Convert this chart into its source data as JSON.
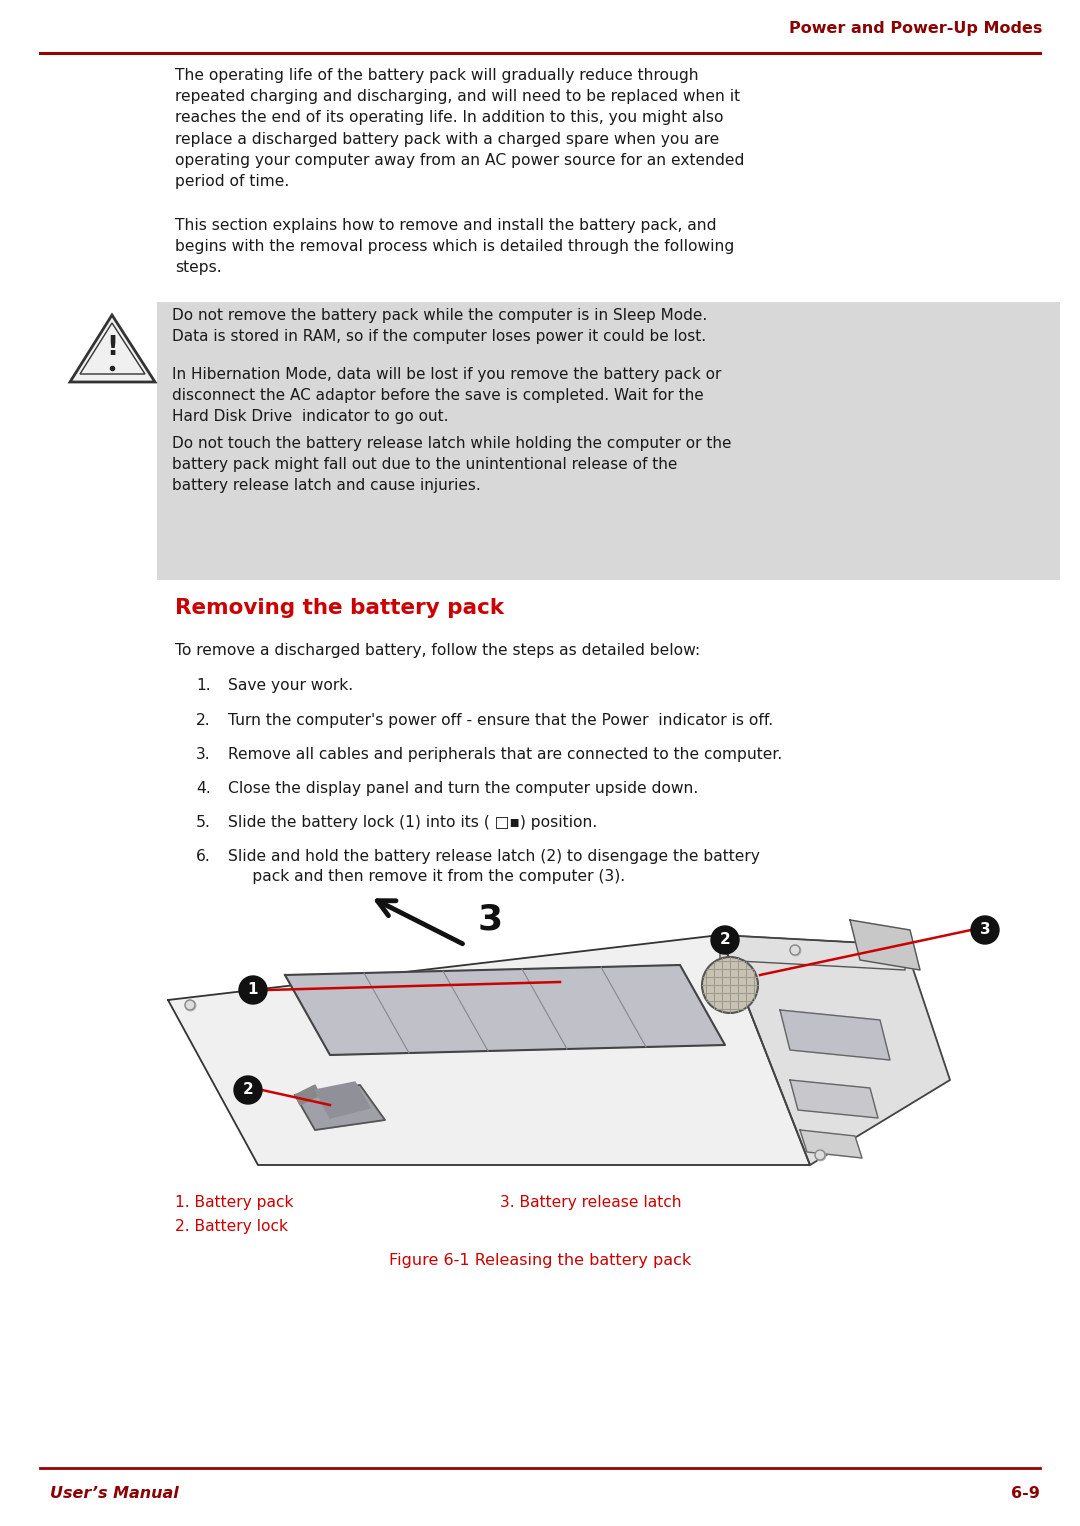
{
  "header_text": "Power and Power-Up Modes",
  "header_color": "#8B0000",
  "line_color": "#990000",
  "footer_left": "User’s Manual",
  "footer_right": "6-9",
  "footer_color": "#8B0000",
  "body_color": "#1a1a1a",
  "bg_color": "#ffffff",
  "section_heading": "Removing the battery pack",
  "section_heading_color": "#CC0000",
  "para1": "The operating life of the battery pack will gradually reduce through\nrepeated charging and discharging, and will need to be replaced when it\nreaches the end of its operating life. In addition to this, you might also\nreplace a discharged battery pack with a charged spare when you are\noperating your computer away from an AC power source for an extended\nperiod of time.",
  "para2": "This section explains how to remove and install the battery pack, and\nbegins with the removal process which is detailed through the following\nsteps.",
  "warning_bg": "#D8D8D8",
  "warn1": "Do not remove the battery pack while the computer is in Sleep Mode.\nData is stored in RAM, so if the computer loses power it could be lost.",
  "warn2": "In Hibernation Mode, data will be lost if you remove the battery pack or\ndisconnect the AC adaptor before the save is completed. Wait for the\nHard Disk Drive  indicator to go out.",
  "warn3": "Do not touch the battery release latch while holding the computer or the\nbattery pack might fall out due to the unintentional release of the\nbattery release latch and cause injuries.",
  "intro_steps": "To remove a discharged battery, follow the steps as detailed below:",
  "steps": [
    "Save your work.",
    "Turn the computer's power off - ensure that the Power  indicator is off.",
    "Remove all cables and peripherals that are connected to the computer.",
    "Close the display panel and turn the computer upside down.",
    "Slide the battery lock (1) into its ( □▪) position.",
    "Slide and hold the battery release latch (2) to disengage the battery\n     pack and then remove it from the computer (3)."
  ],
  "fig_caption": "Figure 6-1 Releasing the battery pack",
  "legend1": "1. Battery pack",
  "legend2": "2. Battery lock",
  "legend3": "3. Battery release latch",
  "legend_color": "#CC0000",
  "red_line": "#CC0000",
  "dark": "#111111"
}
